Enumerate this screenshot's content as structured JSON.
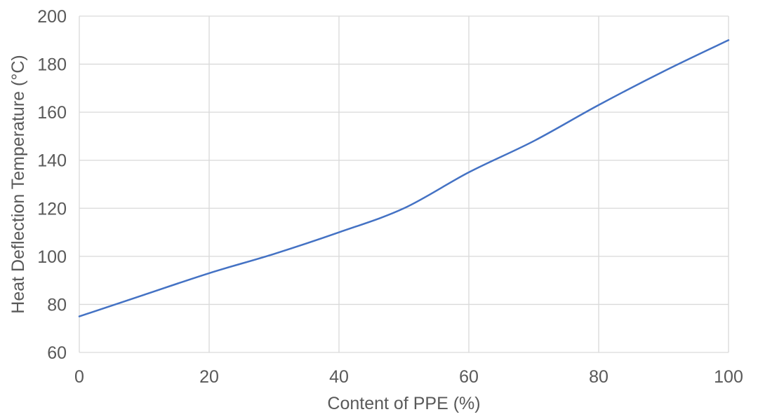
{
  "chart_data": {
    "type": "line",
    "title": "",
    "xlabel": "Content of PPE (%)",
    "ylabel": "Heat Deflection Temperature (°C)",
    "x": [
      0,
      10,
      20,
      30,
      40,
      50,
      60,
      70,
      80,
      90,
      100
    ],
    "y": [
      75,
      84,
      93,
      101,
      110,
      120,
      135,
      148,
      163,
      177,
      190
    ],
    "series": [
      {
        "name": "Heat Deflection Temperature",
        "values": [
          75,
          84,
          93,
          101,
          110,
          120,
          135,
          148,
          163,
          177,
          190
        ]
      }
    ],
    "xlim": [
      0,
      100
    ],
    "ylim": [
      60,
      200
    ],
    "x_ticks": [
      0,
      20,
      40,
      60,
      80,
      100
    ],
    "y_ticks": [
      60,
      80,
      100,
      120,
      140,
      160,
      180,
      200
    ],
    "grid": true,
    "legend": false,
    "smooth": true,
    "line_color": "#4472C4",
    "grid_color": "#D9D9D9",
    "text_color": "#595959"
  }
}
